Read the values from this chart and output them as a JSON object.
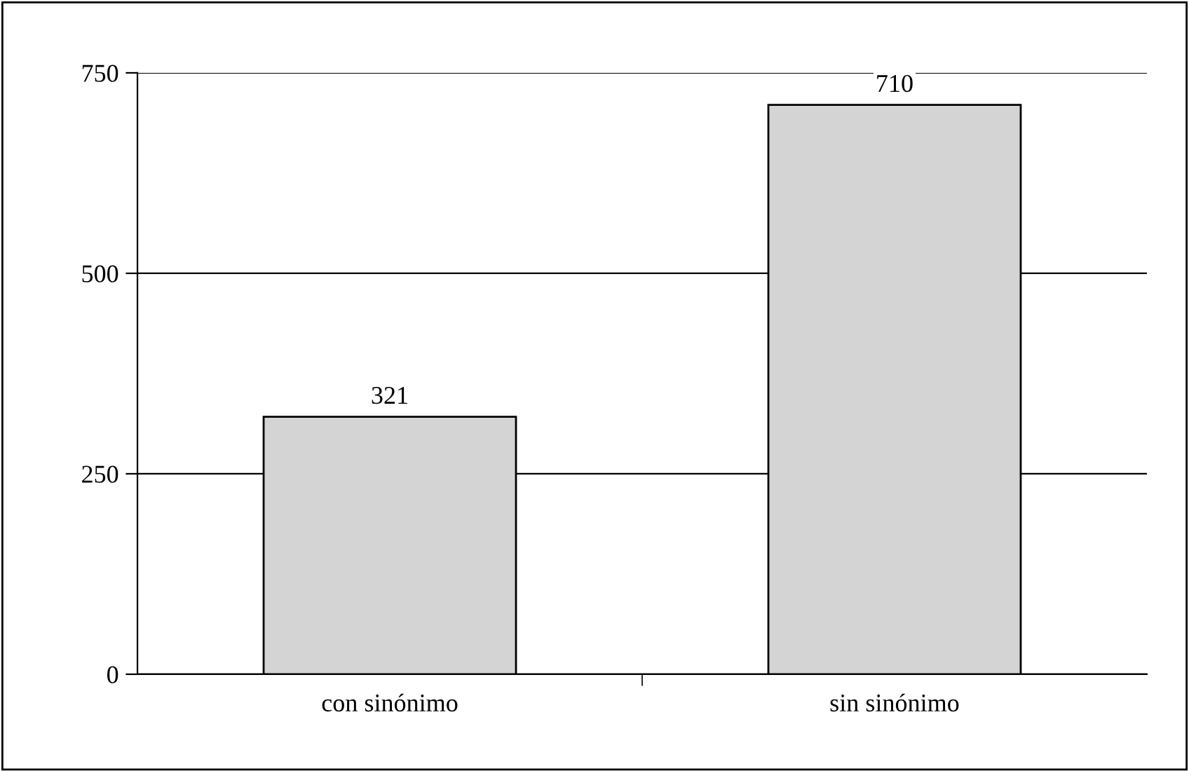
{
  "chart_data": {
    "type": "bar",
    "categories": [
      "con sinónimo",
      "sin sinónimo"
    ],
    "values": [
      321,
      710
    ],
    "color": "#d4d4d4",
    "ylim": [
      0,
      750
    ],
    "yticks": [
      0,
      250,
      500,
      750
    ],
    "grid": "y",
    "data_labels": true
  }
}
